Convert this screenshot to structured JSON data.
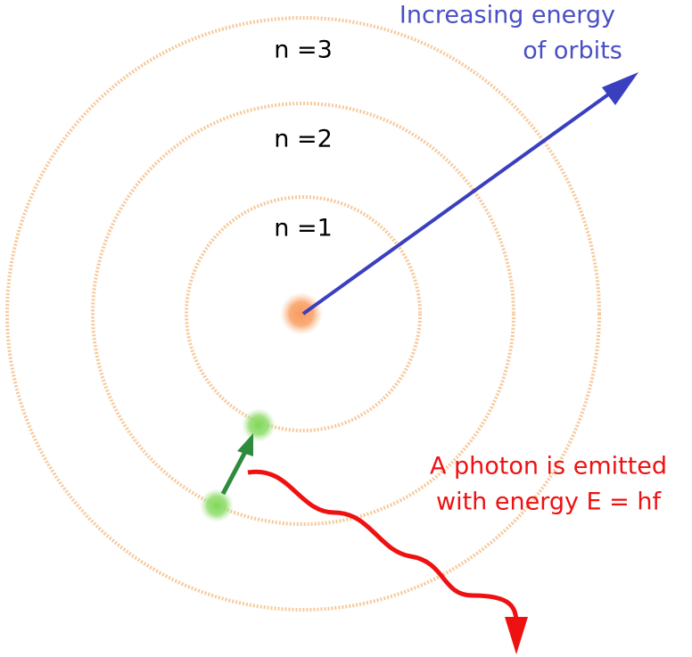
{
  "orbits": [
    {
      "label": "n =1"
    },
    {
      "label": "n =2"
    },
    {
      "label": "n =3"
    }
  ],
  "energy_arrow": {
    "lines": [
      "Increasing energy",
      "of orbits"
    ]
  },
  "photon": {
    "lines": [
      "A photon is emitted",
      "with energy E = hf"
    ]
  }
}
